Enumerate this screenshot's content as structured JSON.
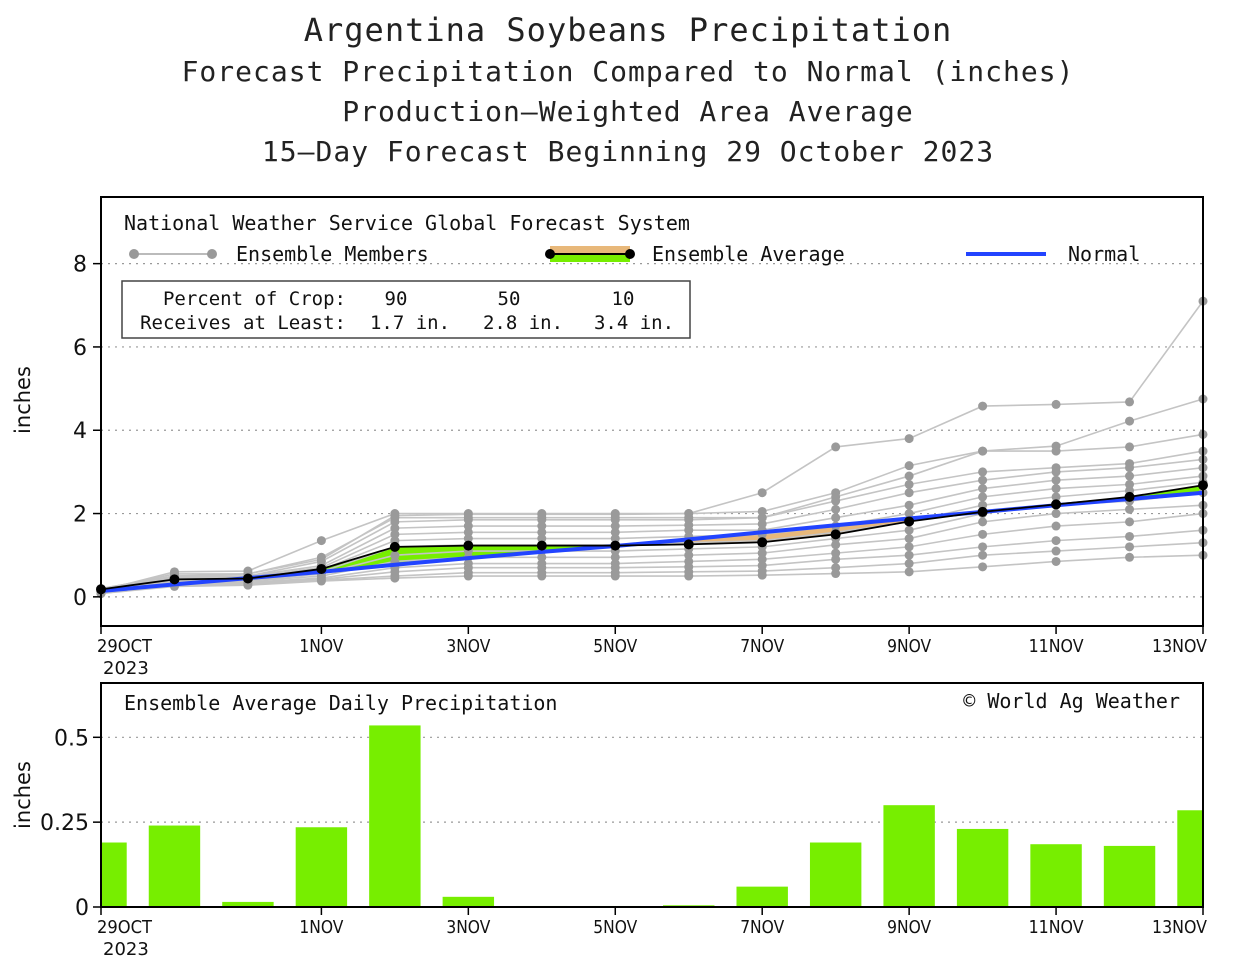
{
  "header": {
    "title": "Argentina Soybeans Precipitation",
    "subtitle1": "Forecast Precipitation Compared to Normal (inches)",
    "subtitle2": "Production–Weighted Area Average",
    "subtitle3": "15–Day Forecast Beginning 29 October 2023"
  },
  "top_panel": {
    "source_label": "National Weather Service Global Forecast System",
    "legend": {
      "members": "Ensemble Members",
      "average": "Ensemble Average",
      "normal": "Normal"
    },
    "crop_box": {
      "row1_label": "Percent of Crop:",
      "row2_label": "Receives at Least:",
      "percents": [
        "90",
        "50",
        "10"
      ],
      "amounts": [
        "1.7 in.",
        "2.8 in.",
        "3.4 in."
      ]
    }
  },
  "bottom_panel": {
    "label": "Ensemble Average Daily Precipitation",
    "credit": "© World Ag Weather"
  },
  "colors": {
    "normal": "#2244ff",
    "bar": "#77ee00",
    "above_normal": "#77ee00",
    "below_normal": "#e8b87a",
    "member": "#c4c4c4",
    "member_dot": "#9a9a9a"
  },
  "chart_data": [
    {
      "type": "line",
      "title": "Argentina Soybeans Precipitation",
      "ylabel": "inches",
      "xlim": [
        0,
        15
      ],
      "ylim": [
        -0.7,
        9.6
      ],
      "y_ticks": [
        0,
        2,
        4,
        6,
        8
      ],
      "grid": "dotted horizontal",
      "x_tick_positions": [
        0,
        3,
        5,
        7,
        9,
        11,
        13,
        15
      ],
      "x_tick_labels": [
        "29OCT",
        "1NOV",
        "3NOV",
        "5NOV",
        "7NOV",
        "9NOV",
        "11NOV",
        "13NOV"
      ],
      "x_tick_year": "2023",
      "normal": {
        "x": [
          0,
          1,
          2,
          3,
          4,
          5,
          6,
          7,
          8,
          9,
          10,
          11,
          12,
          13,
          14,
          15
        ],
        "values": [
          0.14,
          0.3,
          0.45,
          0.6,
          0.77,
          0.93,
          1.08,
          1.22,
          1.38,
          1.55,
          1.72,
          1.88,
          2.04,
          2.2,
          2.35,
          2.5
        ]
      },
      "ensemble_average": {
        "x": [
          0,
          1,
          2,
          3,
          4,
          5,
          6,
          7,
          8,
          9,
          10,
          11,
          12,
          13,
          14,
          15
        ],
        "values": [
          0.18,
          0.42,
          0.44,
          0.67,
          1.2,
          1.23,
          1.23,
          1.23,
          1.26,
          1.31,
          1.5,
          1.81,
          2.04,
          2.22,
          2.4,
          2.68
        ]
      },
      "ensemble_members": [
        [
          0.15,
          0.6,
          0.62,
          1.35,
          2.0,
          2.0,
          2.0,
          2.0,
          2.0,
          2.5,
          3.6,
          3.8,
          4.58,
          4.62,
          4.68,
          7.1
        ],
        [
          0.2,
          0.5,
          0.55,
          0.9,
          1.95,
          1.98,
          1.98,
          1.98,
          2.0,
          2.05,
          2.5,
          3.15,
          3.5,
          3.62,
          4.22,
          4.75
        ],
        [
          0.18,
          0.55,
          0.55,
          0.95,
          1.9,
          1.9,
          1.9,
          1.9,
          1.9,
          1.9,
          2.4,
          2.9,
          3.5,
          3.5,
          3.6,
          3.9
        ],
        [
          0.2,
          0.5,
          0.5,
          0.85,
          1.8,
          1.85,
          1.85,
          1.85,
          1.85,
          1.9,
          2.3,
          2.7,
          3.0,
          3.1,
          3.2,
          3.5
        ],
        [
          0.18,
          0.48,
          0.5,
          0.75,
          1.65,
          1.7,
          1.7,
          1.7,
          1.72,
          1.75,
          2.1,
          2.5,
          2.8,
          3.0,
          3.1,
          3.3
        ],
        [
          0.15,
          0.45,
          0.48,
          0.7,
          1.5,
          1.55,
          1.55,
          1.55,
          1.6,
          1.6,
          1.9,
          2.2,
          2.6,
          2.8,
          2.9,
          3.1
        ],
        [
          0.15,
          0.42,
          0.45,
          0.65,
          1.35,
          1.4,
          1.4,
          1.4,
          1.45,
          1.5,
          1.7,
          2.0,
          2.4,
          2.6,
          2.7,
          2.9
        ],
        [
          0.15,
          0.4,
          0.43,
          0.6,
          1.2,
          1.25,
          1.25,
          1.25,
          1.3,
          1.35,
          1.55,
          1.8,
          2.2,
          2.4,
          2.55,
          2.75
        ],
        [
          0.12,
          0.38,
          0.4,
          0.55,
          1.0,
          1.1,
          1.1,
          1.1,
          1.15,
          1.2,
          1.4,
          1.6,
          2.0,
          2.2,
          2.3,
          2.5
        ],
        [
          0.12,
          0.35,
          0.38,
          0.5,
          0.85,
          0.95,
          0.95,
          0.95,
          1.0,
          1.05,
          1.25,
          1.4,
          1.8,
          2.0,
          2.1,
          2.2
        ],
        [
          0.1,
          0.32,
          0.35,
          0.45,
          0.7,
          0.8,
          0.8,
          0.8,
          0.85,
          0.9,
          1.05,
          1.2,
          1.5,
          1.7,
          1.8,
          2.0
        ],
        [
          0.1,
          0.3,
          0.33,
          0.42,
          0.6,
          0.7,
          0.7,
          0.7,
          0.72,
          0.75,
          0.9,
          1.0,
          1.2,
          1.35,
          1.45,
          1.6
        ],
        [
          0.08,
          0.28,
          0.3,
          0.4,
          0.5,
          0.58,
          0.58,
          0.58,
          0.6,
          0.62,
          0.7,
          0.8,
          1.0,
          1.1,
          1.2,
          1.3
        ],
        [
          0.08,
          0.25,
          0.28,
          0.38,
          0.45,
          0.5,
          0.5,
          0.5,
          0.5,
          0.52,
          0.56,
          0.6,
          0.72,
          0.85,
          0.95,
          1.0
        ]
      ]
    },
    {
      "type": "bar",
      "title": "Ensemble Average Daily Precipitation",
      "ylabel": "inches",
      "xlim": [
        0,
        15
      ],
      "ylim": [
        0,
        0.66
      ],
      "y_ticks": [
        0,
        0.25,
        0.5
      ],
      "y_tick_labels": [
        "0",
        "0.25",
        "0.5"
      ],
      "grid": "dotted horizontal",
      "x_tick_positions": [
        0,
        3,
        5,
        7,
        9,
        11,
        13,
        15
      ],
      "x_tick_labels": [
        "29OCT",
        "1NOV",
        "3NOV",
        "5NOV",
        "7NOV",
        "9NOV",
        "11NOV",
        "13NOV"
      ],
      "x_tick_year": "2023",
      "x": [
        0,
        1,
        2,
        3,
        4,
        5,
        6,
        7,
        8,
        9,
        10,
        11,
        12,
        13,
        14,
        15
      ],
      "values": [
        0.19,
        0.24,
        0.015,
        0.235,
        0.535,
        0.03,
        0.003,
        0.003,
        0.005,
        0.06,
        0.19,
        0.3,
        0.23,
        0.185,
        0.18,
        0.285
      ]
    }
  ]
}
